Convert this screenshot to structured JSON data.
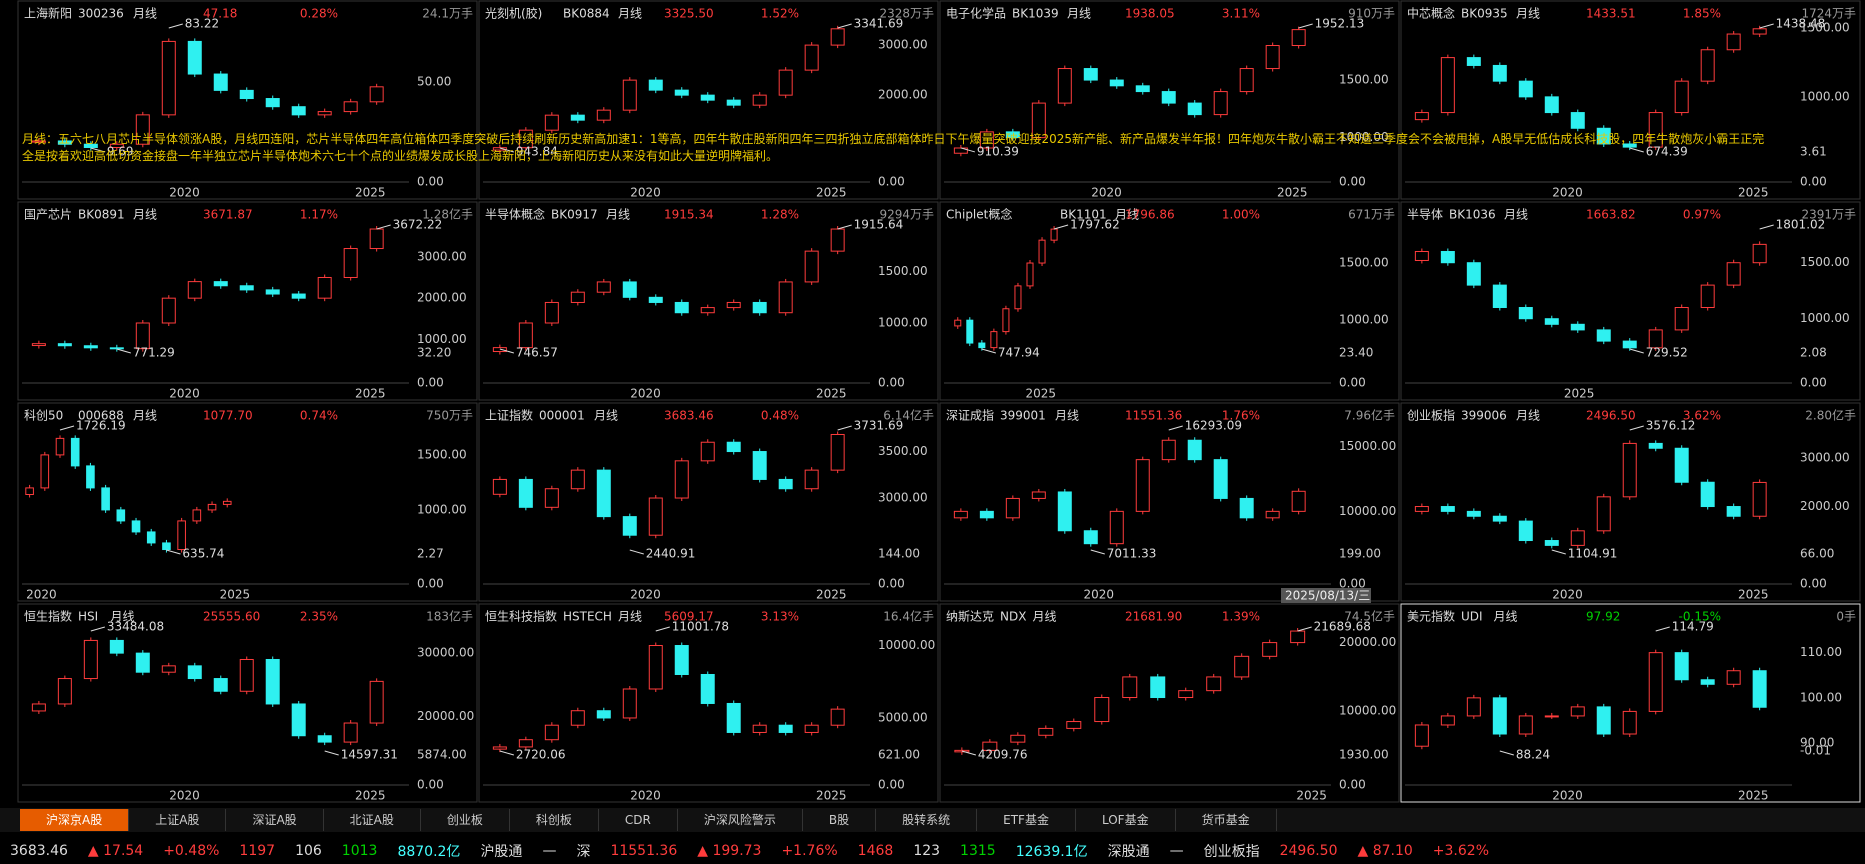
{
  "panels": [
    {
      "name": "上海新阳",
      "code": "300236",
      "period": "月线",
      "price": "47.18",
      "change": "0.28%",
      "volume": "24.1万手",
      "yaxis": [
        "50.00"
      ],
      "vol_axis": [
        "0.00"
      ],
      "high": "83.22",
      "low": "9.69",
      "years": [
        "2020",
        "2025"
      ],
      "trend": [
        14,
        12,
        10,
        12,
        30,
        75,
        55,
        45,
        40,
        35,
        30,
        32,
        38,
        47.18
      ]
    },
    {
      "name": "光刻机(胶)",
      "code": "BK0884",
      "period": "月线",
      "price": "3325.50",
      "change": "1.52%",
      "volume": "2328万手",
      "yaxis": [
        "3000.00",
        "2000.00"
      ],
      "vol_axis": [
        "0.00"
      ],
      "high": "3341.69",
      "low": "943.84",
      "years": [
        "2020",
        "2025"
      ],
      "trend": [
        950,
        1300,
        1600,
        1500,
        1700,
        2300,
        2100,
        2000,
        1900,
        1800,
        2000,
        2500,
        3000,
        3325.5
      ]
    },
    {
      "name": "电子化学品",
      "code": "BK1039",
      "period": "月线",
      "price": "1938.05",
      "change": "3.11%",
      "volume": "910万手",
      "yaxis": [
        "1500.00",
        "1000.00"
      ],
      "vol_axis": [
        "0.00"
      ],
      "high": "1952.13",
      "low": "910.39",
      "years": [
        "2020",
        "2025"
      ],
      "trend": [
        910,
        1050,
        1000,
        1300,
        1600,
        1500,
        1450,
        1400,
        1300,
        1200,
        1400,
        1600,
        1800,
        1938.05
      ]
    },
    {
      "name": "中芯概念",
      "code": "BK0935",
      "period": "月线",
      "price": "1433.51",
      "change": "1.85%",
      "volume": "1724万手",
      "yaxis": [
        "1500.00",
        "1000.00"
      ],
      "vol_axis": [
        "3.61",
        "0.00"
      ],
      "high": "1438.48",
      "low": "674.39",
      "years": [
        "2020",
        "2025"
      ],
      "trend": [
        900,
        1250,
        1200,
        1100,
        1000,
        900,
        800,
        700,
        680,
        900,
        1100,
        1300,
        1400,
        1433.51
      ]
    },
    {
      "name": "国产芯片",
      "code": "BK0891",
      "period": "月线",
      "price": "3671.87",
      "change": "1.17%",
      "volume": "1.28亿手",
      "yaxis": [
        "3000.00",
        "2000.00",
        "1000.00"
      ],
      "vol_axis": [
        "32.20",
        "0.00"
      ],
      "high": "3672.22",
      "low": "771.29",
      "years": [
        "2020",
        "2025"
      ],
      "trend": [
        900,
        850,
        800,
        780,
        1400,
        2000,
        2400,
        2300,
        2200,
        2100,
        2000,
        2500,
        3200,
        3671.87
      ]
    },
    {
      "name": "半导体概念",
      "code": "BK0917",
      "period": "月线",
      "price": "1915.34",
      "change": "1.28%",
      "volume": "9294万手",
      "yaxis": [
        "1500.00",
        "1000.00"
      ],
      "vol_axis": [
        "0.00"
      ],
      "high": "1915.64",
      "low": "746.57",
      "years": [
        "2020",
        "2025"
      ],
      "trend": [
        760,
        1000,
        1200,
        1300,
        1400,
        1250,
        1200,
        1100,
        1150,
        1200,
        1100,
        1400,
        1700,
        1915.34
      ]
    },
    {
      "name": "Chiplet概念",
      "code": "BK1101",
      "period": "月线",
      "price": "1796.86",
      "change": "1.00%",
      "volume": "671万手",
      "yaxis": [
        "1500.00",
        "1000.00"
      ],
      "vol_axis": [
        "23.40",
        "0.00"
      ],
      "high": "1797.62",
      "low": "747.94",
      "years": [
        "2025"
      ],
      "trend": [
        1000,
        800,
        760,
        900,
        1100,
        1300,
        1500,
        1700,
        1796.86
      ]
    },
    {
      "name": "半导体",
      "code": "BK1036",
      "period": "月线",
      "price": "1663.82",
      "change": "0.97%",
      "volume": "2391万手",
      "yaxis": [
        "1500.00",
        "1000.00"
      ],
      "vol_axis": [
        "2.08",
        "0.00"
      ],
      "high": "1801.02",
      "low": "729.52",
      "years": [
        "2025"
      ],
      "trend": [
        1600,
        1500,
        1300,
        1100,
        1000,
        950,
        900,
        800,
        740,
        900,
        1100,
        1300,
        1500,
        1663.82
      ]
    },
    {
      "name": "科创50",
      "code": "000688",
      "period": "月线",
      "price": "1077.70",
      "change": "0.74%",
      "volume": "750万手",
      "yaxis": [
        "1500.00",
        "1000.00"
      ],
      "vol_axis": [
        "2.27",
        "0.00"
      ],
      "high": "1726.19",
      "low": "635.74",
      "years": [
        "2020",
        "2025"
      ],
      "trend": [
        1200,
        1500,
        1650,
        1400,
        1200,
        1000,
        900,
        800,
        700,
        640,
        900,
        1000,
        1050,
        1077.7
      ]
    },
    {
      "name": "上证指数",
      "code": "000001",
      "period": "月线",
      "price": "3683.46",
      "change": "0.48%",
      "volume": "6.14亿手",
      "yaxis": [
        "3500.00",
        "3000.00"
      ],
      "vol_axis": [
        "144.00",
        "0.00"
      ],
      "high": "3731.69",
      "low": "2440.91",
      "years": [
        "2020",
        "2025"
      ],
      "trend": [
        3200,
        2900,
        3100,
        3300,
        2800,
        2600,
        3000,
        3400,
        3600,
        3500,
        3200,
        3100,
        3300,
        3683.46
      ]
    },
    {
      "name": "深证成指",
      "code": "399001",
      "period": "月线",
      "price": "11551.36",
      "change": "1.76%",
      "volume": "7.96亿手",
      "yaxis": [
        "15000.00",
        "10000.00"
      ],
      "vol_axis": [
        "199.00",
        "0.00"
      ],
      "high": "16293.09",
      "low": "7011.33",
      "years": [
        "2020"
      ],
      "trend": [
        10000,
        9500,
        11000,
        11500,
        8500,
        7500,
        10000,
        14000,
        15500,
        14000,
        11000,
        9500,
        10000,
        11551.36
      ]
    },
    {
      "name": "创业板指",
      "code": "399006",
      "period": "月线",
      "price": "2496.50",
      "change": "3.62%",
      "volume": "2.80亿手",
      "yaxis": [
        "3000.00",
        "2000.00"
      ],
      "vol_axis": [
        "66.00",
        "0.00"
      ],
      "high": "3576.12",
      "low": "1104.91",
      "years": [
        "2020",
        "2025"
      ],
      "trend": [
        2000,
        1900,
        1800,
        1700,
        1300,
        1200,
        1500,
        2200,
        3300,
        3200,
        2500,
        2000,
        1800,
        2496.5
      ]
    },
    {
      "name": "恒生指数",
      "code": "HSI",
      "period": "月线",
      "price": "25555.60",
      "change": "2.35%",
      "volume": "183亿手",
      "yaxis": [
        "30000.00",
        "20000.00"
      ],
      "vol_axis": [
        "5874.00",
        "0.00"
      ],
      "high": "33484.08",
      "low": "14597.31",
      "years": [
        "2020",
        "2025"
      ],
      "trend": [
        22000,
        26000,
        32000,
        30000,
        27000,
        28000,
        26000,
        24000,
        29000,
        22000,
        17000,
        16000,
        19000,
        25555.6
      ]
    },
    {
      "name": "恒生科技指数",
      "code": "HSTECH",
      "period": "月线",
      "price": "5609.17",
      "change": "3.13%",
      "volume": "16.4亿手",
      "yaxis": [
        "10000.00",
        "5000.00"
      ],
      "vol_axis": [
        "621.00",
        "0.00"
      ],
      "high": "11001.78",
      "low": "2720.06",
      "years": [
        "2020",
        "2025"
      ],
      "trend": [
        3000,
        3500,
        4500,
        5500,
        5000,
        7000,
        10000,
        8000,
        6000,
        4000,
        4500,
        4000,
        4500,
        5609.17
      ]
    },
    {
      "name": "纳斯达克",
      "code": "NDX",
      "period": "月线",
      "price": "21681.90",
      "change": "1.39%",
      "volume": "74.5亿手",
      "yaxis": [
        "20000.00",
        "10000.00"
      ],
      "vol_axis": [
        "1930.00",
        "0.00"
      ],
      "high": "21689.68",
      "low": "4209.76",
      "years": [
        "2025"
      ],
      "trend": [
        4300,
        5500,
        6500,
        7500,
        8500,
        12000,
        15000,
        12000,
        13000,
        15000,
        18000,
        20000,
        21681.9
      ]
    },
    {
      "name": "美元指数",
      "code": "UDI",
      "period": "月线",
      "price": "97.92",
      "change": "-0.15%",
      "volume": "0手",
      "yaxis": [
        "110.00",
        "100.00",
        "90.00",
        "-0.01"
      ],
      "vol_axis": [],
      "high": "114.79",
      "low": "88.24",
      "years": [
        "2020",
        "2025"
      ],
      "trend": [
        94,
        96,
        100,
        92,
        96,
        96,
        98,
        92,
        97,
        110,
        104,
        103,
        106,
        97.92
      ]
    }
  ],
  "note": "月线：五六七八月芯片半导体领涨A股，月线四连阳，芯片半导体四年高位箱体四季度突破后持续刷新历史新高加速1：1等高，四年牛散庄股新阳四年三四折独立底部箱体昨日下午爆量突破迎接2025新产能、新产品爆发半年报！四年炮灰牛散小霸王不知道三季度会不会被甩掉，A股早无低估成长科技股，四年牛散炮灰小霸王正完全是按着欢迎高低切资金接盘一年半独立芯片半导体炮术六七十个点的业绩爆发成长股上海新阳，上海新阳历史从来没有如此大量逆明牌福利。",
  "date_tip": "2025/08/13/三",
  "tabs": [
    "沪深京A股",
    "上证A股",
    "深证A股",
    "北证A股",
    "创业板",
    "科创板",
    "CDR",
    "沪深风险警示",
    "B股",
    "股转系统",
    "ETF基金",
    "LOF基金",
    "货币基金"
  ],
  "status": [
    "3683.46",
    "▲ 17.54",
    "+0.48%",
    "1197",
    "106",
    "1013",
    "8870.2亿",
    "沪股通",
    "—",
    "深",
    "11551.36",
    "▲ 199.73",
    "+1.76%",
    "1468",
    "123",
    "1315",
    "12639.1亿",
    "深股通",
    "—",
    "创业板指",
    "2496.50",
    "▲ 87.10",
    "+3.62%"
  ]
}
